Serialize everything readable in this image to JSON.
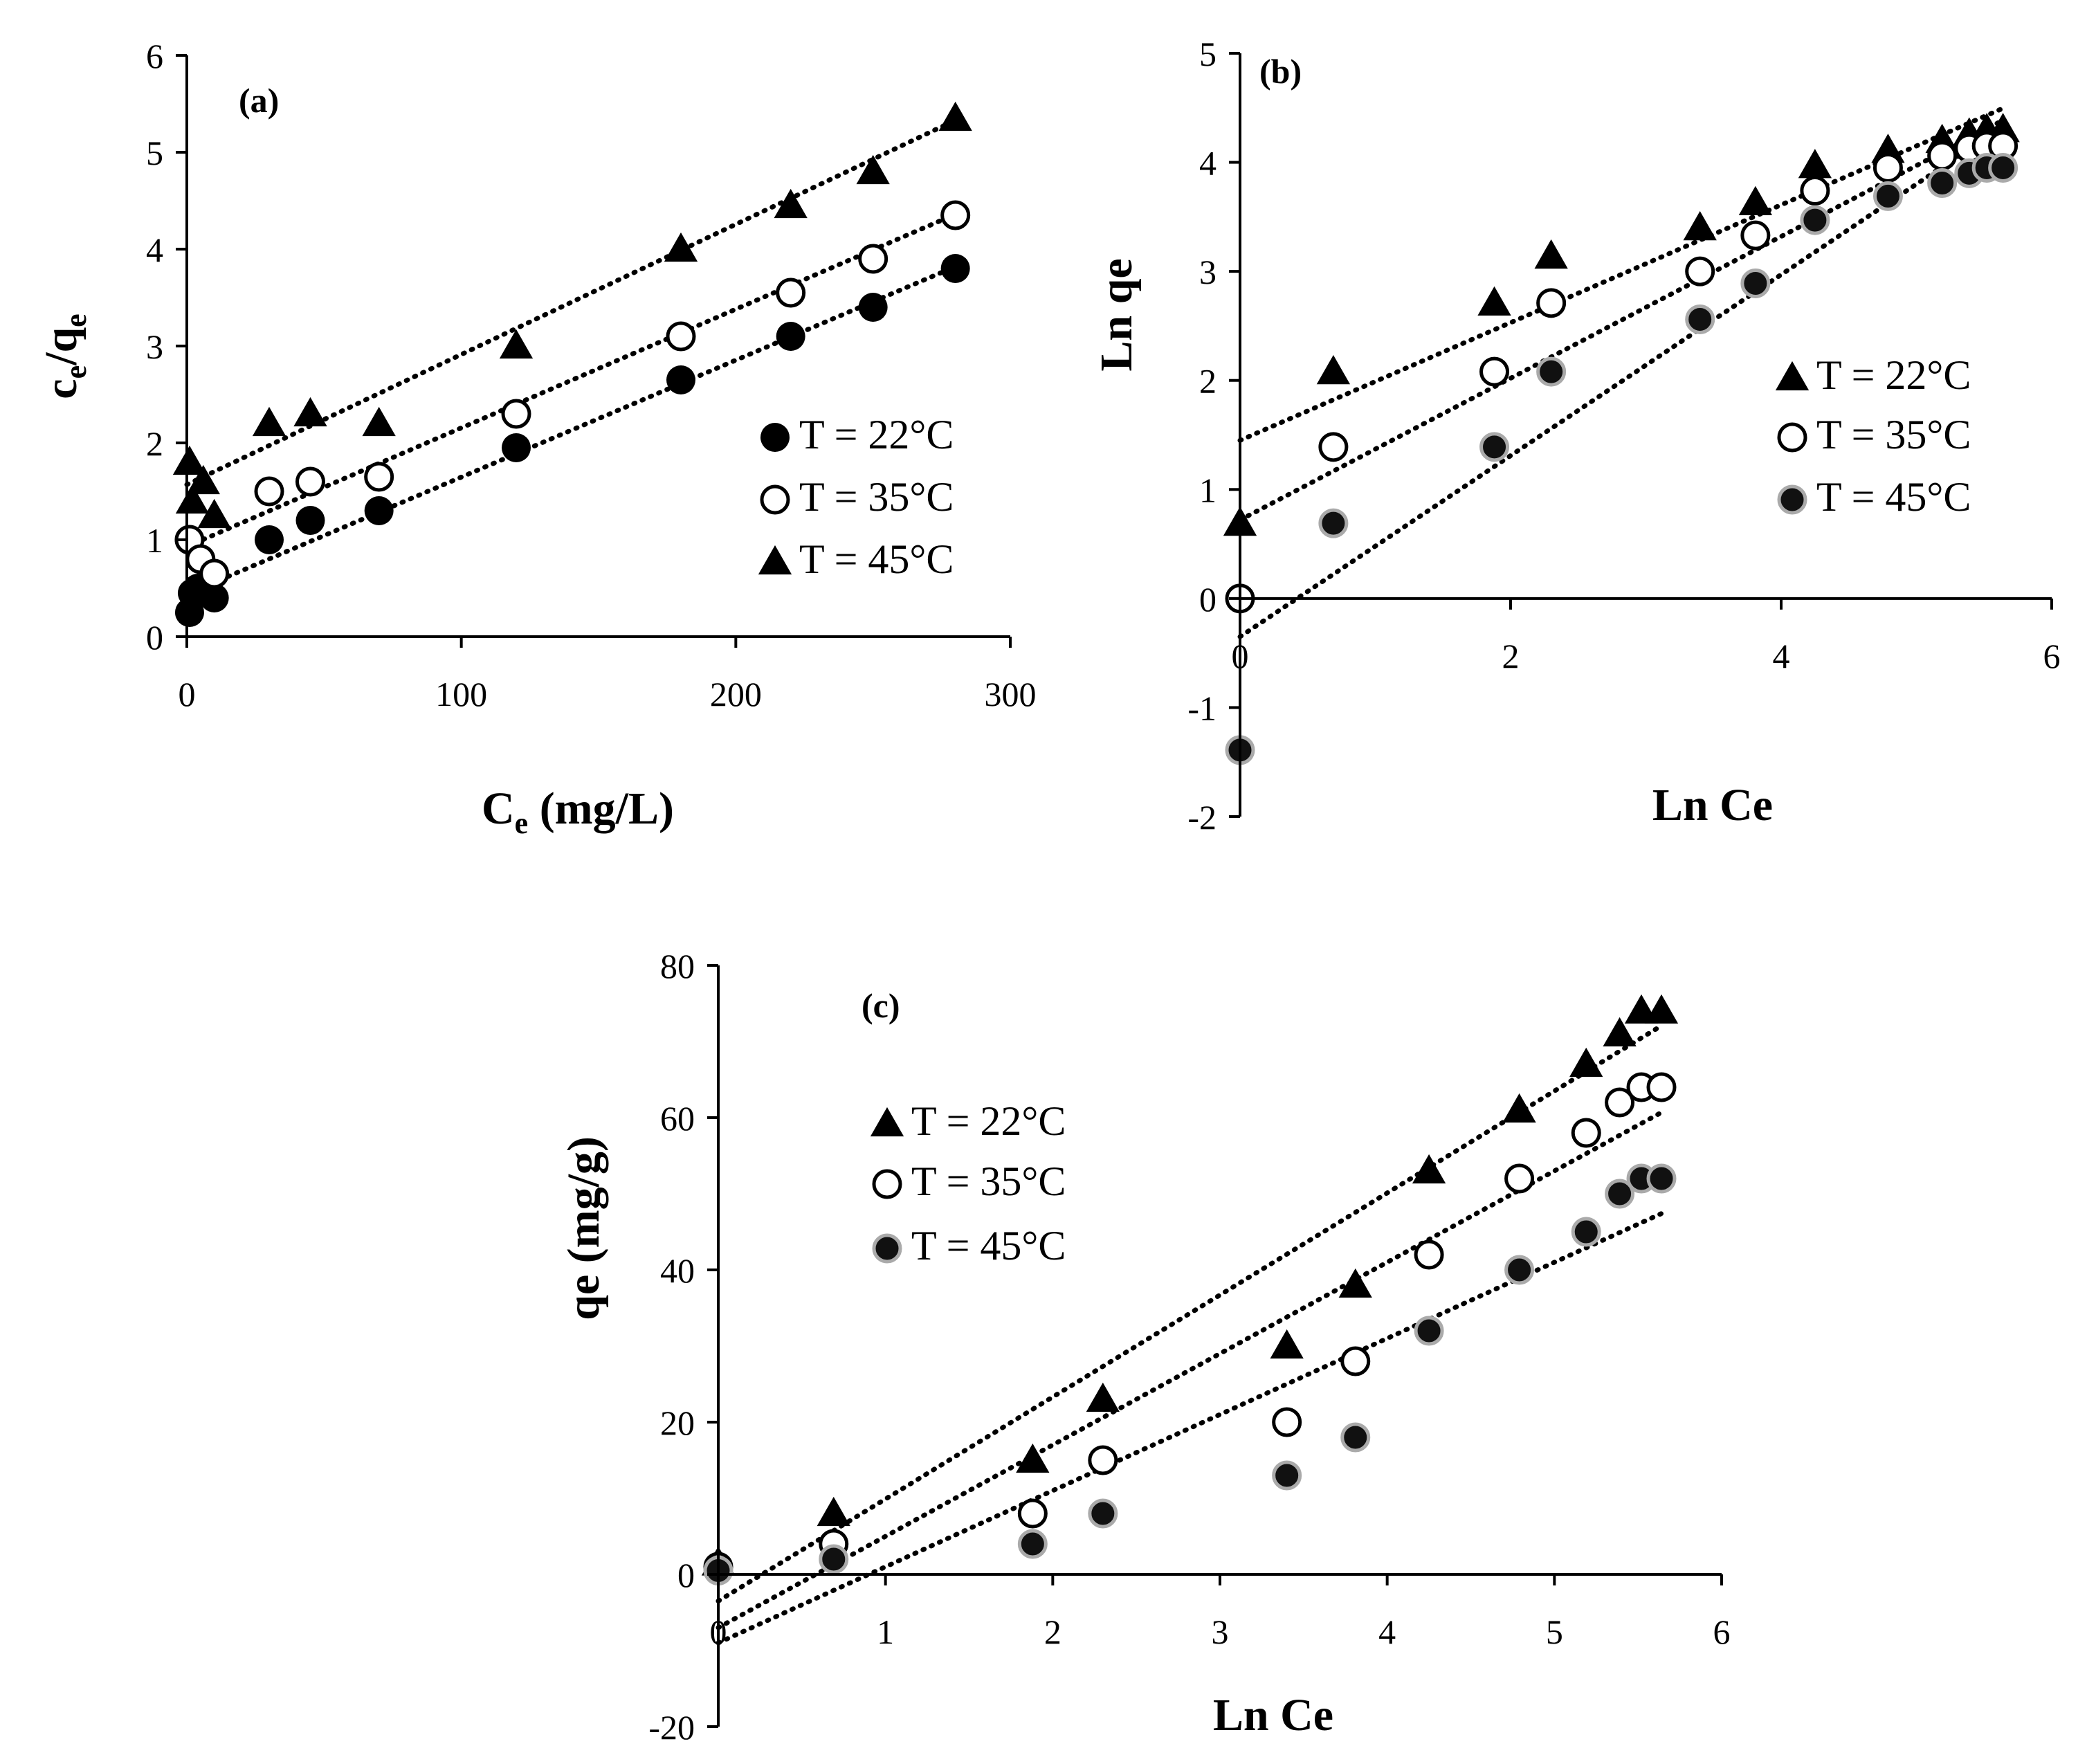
{
  "chart_data": [
    {
      "id": "a",
      "type": "scatter",
      "panel_label": "(a)",
      "xlabel_main": "C",
      "xlabel_sub": "e",
      "xlabel_tail": " (mg/L)",
      "ylabel_main1": "c",
      "ylabel_sub1": "e",
      "ylabel_mid": "/q",
      "ylabel_sub2": "e",
      "xlim": [
        0,
        300
      ],
      "ylim": [
        0,
        6
      ],
      "xticks": [
        0,
        100,
        200,
        300
      ],
      "yticks": [
        0,
        1,
        2,
        3,
        4,
        5,
        6
      ],
      "xtick_labels": [
        "0",
        "100",
        "200",
        "300"
      ],
      "ytick_labels": [
        "0",
        "1",
        "2",
        "3",
        "4",
        "5",
        "6"
      ],
      "legend_position": "bottom-right",
      "legend_order": [
        0,
        1,
        2
      ],
      "series": [
        {
          "name": "T = 22°C",
          "marker": "filled-circle",
          "x": [
            1,
            2,
            4,
            10,
            30,
            45,
            70,
            120,
            180,
            220,
            250,
            280
          ],
          "y": [
            0.25,
            0.45,
            0.5,
            0.4,
            1.0,
            1.2,
            1.3,
            1.95,
            2.65,
            3.1,
            3.4,
            3.8
          ],
          "trend": {
            "x0": 0,
            "x1": 282,
            "slope": 0.01207,
            "intercept": 0.44
          }
        },
        {
          "name": "T = 35°C",
          "marker": "open-circle",
          "x": [
            1,
            5,
            10,
            30,
            45,
            70,
            120,
            180,
            220,
            250,
            280
          ],
          "y": [
            1.0,
            0.8,
            0.65,
            1.5,
            1.6,
            1.65,
            2.3,
            3.1,
            3.55,
            3.9,
            4.35
          ],
          "trend": {
            "x0": 0,
            "x1": 282,
            "slope": 0.01225,
            "intercept": 0.93
          }
        },
        {
          "name": "T = 45°C",
          "marker": "filled-triangle",
          "x": [
            1,
            2,
            6,
            10,
            30,
            45,
            70,
            120,
            180,
            220,
            250,
            280
          ],
          "y": [
            1.8,
            1.4,
            1.6,
            1.25,
            2.2,
            2.3,
            2.2,
            3.0,
            4.0,
            4.45,
            4.8,
            5.35
          ],
          "trend": {
            "x0": 0,
            "x1": 282,
            "slope": 0.01343,
            "intercept": 1.57
          }
        }
      ]
    },
    {
      "id": "b",
      "type": "scatter",
      "panel_label": "(b)",
      "xlabel": "Ln Ce",
      "ylabel": "Ln qe",
      "xlim": [
        0,
        6
      ],
      "ylim": [
        -2,
        5
      ],
      "xticks": [
        0,
        2,
        4,
        6
      ],
      "yticks": [
        -2,
        -1,
        0,
        1,
        2,
        3,
        4,
        5
      ],
      "xtick_labels": [
        "0",
        "2",
        "4",
        "6"
      ],
      "ytick_labels": [
        "-2",
        "-1",
        "0",
        "1",
        "2",
        "3",
        "4",
        "5"
      ],
      "legend_position": "middle-right",
      "legend_order": [
        0,
        1,
        2
      ],
      "series": [
        {
          "name": "T = 22°C",
          "marker": "filled-triangle",
          "x": [
            0,
            0.69,
            1.88,
            2.3,
            3.4,
            3.81,
            4.25,
            4.79,
            5.19,
            5.39,
            5.52,
            5.64
          ],
          "y": [
            0.69,
            2.08,
            2.71,
            3.14,
            3.4,
            3.63,
            3.97,
            4.11,
            4.2,
            4.26,
            4.3,
            4.3
          ],
          "trend": {
            "x0": 0,
            "x1": 5.64,
            "slope": 0.54,
            "intercept": 1.45
          }
        },
        {
          "name": "T = 35°C",
          "marker": "open-circle",
          "x": [
            0,
            0.69,
            1.88,
            2.3,
            3.4,
            3.81,
            4.25,
            4.79,
            5.19,
            5.39,
            5.52,
            5.64
          ],
          "y": [
            0,
            1.39,
            2.08,
            2.71,
            3.0,
            3.33,
            3.74,
            3.95,
            4.06,
            4.13,
            4.15,
            4.15
          ],
          "trend": {
            "x0": 0,
            "x1": 5.64,
            "slope": 0.65,
            "intercept": 0.72
          }
        },
        {
          "name": "T = 45°C",
          "marker": "gray-circle",
          "x": [
            0,
            0.69,
            1.88,
            2.3,
            3.4,
            3.81,
            4.25,
            4.79,
            5.19,
            5.39,
            5.52,
            5.64
          ],
          "y": [
            -1.39,
            0.69,
            1.39,
            2.08,
            2.56,
            2.89,
            3.47,
            3.69,
            3.81,
            3.9,
            3.95,
            3.95
          ],
          "trend": {
            "x0": 0,
            "x1": 5.64,
            "slope": 0.83,
            "intercept": -0.35
          }
        }
      ]
    },
    {
      "id": "c",
      "type": "scatter",
      "panel_label": "(c)",
      "xlabel": "Ln Ce",
      "ylabel": "qe (mg/g)",
      "xlim": [
        0,
        6
      ],
      "ylim": [
        -20,
        80
      ],
      "xticks": [
        0,
        1,
        2,
        3,
        4,
        5,
        6
      ],
      "yticks": [
        -20,
        0,
        20,
        40,
        60,
        80
      ],
      "xtick_labels": [
        "0",
        "1",
        "2",
        "3",
        "4",
        "5",
        "6"
      ],
      "ytick_labels": [
        "-20",
        "0",
        "20",
        "40",
        "60",
        "80"
      ],
      "legend_position": "upper-left",
      "legend_order": [
        0,
        1,
        2
      ],
      "series": [
        {
          "name": "T = 22°C",
          "marker": "filled-triangle",
          "x": [
            0,
            0.69,
            1.88,
            2.3,
            3.4,
            3.81,
            4.25,
            4.79,
            5.19,
            5.39,
            5.52,
            5.64
          ],
          "y": [
            1.5,
            8,
            15,
            23,
            30,
            38,
            53,
            61,
            67,
            71,
            74,
            74
          ],
          "trend": {
            "x0": 0,
            "x1": 5.64,
            "slope": 13.4,
            "intercept": -3.5
          }
        },
        {
          "name": "T = 35°C",
          "marker": "open-circle",
          "x": [
            0,
            0.69,
            1.88,
            2.3,
            3.4,
            3.81,
            4.25,
            4.79,
            5.19,
            5.39,
            5.52,
            5.64
          ],
          "y": [
            1,
            4,
            8,
            15,
            20,
            28,
            42,
            52,
            58,
            62,
            64,
            64
          ],
          "trend": {
            "x0": 0,
            "x1": 5.64,
            "slope": 12.0,
            "intercept": -7.0
          }
        },
        {
          "name": "T = 45°C",
          "marker": "gray-circle",
          "x": [
            0,
            0.69,
            1.88,
            2.3,
            3.4,
            3.81,
            4.25,
            4.79,
            5.19,
            5.39,
            5.52,
            5.64
          ],
          "y": [
            0.5,
            2,
            4,
            8,
            13,
            18,
            32,
            40,
            45,
            50,
            52,
            52
          ],
          "trend": {
            "x0": 0,
            "x1": 5.64,
            "slope": 10.0,
            "intercept": -9.0
          }
        }
      ]
    }
  ]
}
